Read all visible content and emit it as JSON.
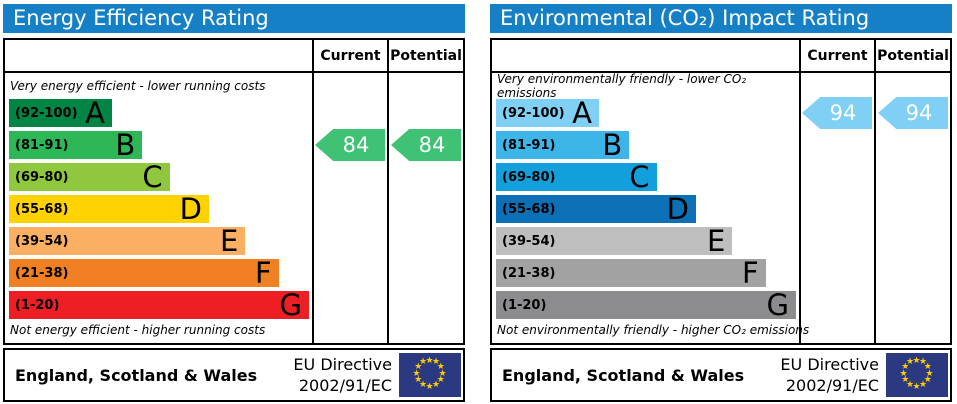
{
  "chart_data": [
    {
      "type": "bar",
      "title": "Energy Efficiency Rating",
      "categories": [
        "A (92-100)",
        "B (81-91)",
        "C (69-80)",
        "D (55-68)",
        "E (39-54)",
        "F (21-38)",
        "G (1-20)"
      ],
      "series": [
        {
          "name": "Current",
          "values": [
            84
          ],
          "band": "B"
        },
        {
          "name": "Potential",
          "values": [
            84
          ],
          "band": "B"
        }
      ],
      "ylim": [
        1,
        100
      ],
      "top_annotation": "Very energy efficient - lower running costs",
      "bottom_annotation": "Not energy efficient - higher running costs",
      "legend_position": "none",
      "footer": "England, Scotland & Wales — EU Directive 2002/91/EC"
    },
    {
      "type": "bar",
      "title": "Environmental (CO₂) Impact Rating",
      "categories": [
        "A (92-100)",
        "B (81-91)",
        "C (69-80)",
        "D (55-68)",
        "E (39-54)",
        "F (21-38)",
        "G (1-20)"
      ],
      "series": [
        {
          "name": "Current",
          "values": [
            94
          ],
          "band": "A"
        },
        {
          "name": "Potential",
          "values": [
            94
          ],
          "band": "A"
        }
      ],
      "ylim": [
        1,
        100
      ],
      "top_annotation": "Very environmentally friendly - lower CO₂ emissions",
      "bottom_annotation": "Not environmentally friendly - higher CO₂ emissions",
      "legend_position": "none",
      "footer": "England, Scotland & Wales — EU Directive 2002/91/EC"
    }
  ],
  "style": {
    "header_bg": "#1580C6",
    "flag_bg": "#2B3A80",
    "flag_star": "#FFCC00",
    "border": "#000000"
  },
  "panels": [
    {
      "title": "Energy Efficiency Rating",
      "columns": {
        "current": "Current",
        "potential": "Potential"
      },
      "top_note": "Very energy efficient - lower running costs",
      "bottom_note": "Not energy efficient - higher running costs",
      "bands": [
        {
          "range": "(92-100)",
          "letter": "A",
          "color": "#008544",
          "width_pct": 34
        },
        {
          "range": "(81-91)",
          "letter": "B",
          "color": "#2DB757",
          "width_pct": 44
        },
        {
          "range": "(69-80)",
          "letter": "C",
          "color": "#8FC73E",
          "width_pct": 53
        },
        {
          "range": "(55-68)",
          "letter": "D",
          "color": "#FFD200",
          "width_pct": 66
        },
        {
          "range": "(39-54)",
          "letter": "E",
          "color": "#FBAF63",
          "width_pct": 78
        },
        {
          "range": "(21-38)",
          "letter": "F",
          "color": "#F08023",
          "width_pct": 89
        },
        {
          "range": "(1-20)",
          "letter": "G",
          "color": "#ED1E24",
          "width_pct": 99
        }
      ],
      "current": {
        "value": "84",
        "band_index": 1,
        "color": "#3FC274"
      },
      "potential": {
        "value": "84",
        "band_index": 1,
        "color": "#3FC274"
      },
      "footer": {
        "region": "England, Scotland & Wales",
        "directive_line1": "EU Directive",
        "directive_line2": "2002/91/EC"
      }
    },
    {
      "title": "Environmental (CO₂) Impact Rating",
      "columns": {
        "current": "Current",
        "potential": "Potential"
      },
      "top_note": "Very environmentally friendly - lower CO₂ emissions",
      "bottom_note": "Not environmentally friendly - higher CO₂ emissions",
      "bands": [
        {
          "range": "(92-100)",
          "letter": "A",
          "color": "#7FD0F4",
          "width_pct": 34
        },
        {
          "range": "(81-91)",
          "letter": "B",
          "color": "#3DB5E9",
          "width_pct": 44
        },
        {
          "range": "(69-80)",
          "letter": "C",
          "color": "#129FDB",
          "width_pct": 53
        },
        {
          "range": "(55-68)",
          "letter": "D",
          "color": "#0B70B5",
          "width_pct": 66
        },
        {
          "range": "(39-54)",
          "letter": "E",
          "color": "#BEBEBE",
          "width_pct": 78
        },
        {
          "range": "(21-38)",
          "letter": "F",
          "color": "#A2A2A2",
          "width_pct": 89
        },
        {
          "range": "(1-20)",
          "letter": "G",
          "color": "#8C8C8E",
          "width_pct": 99
        }
      ],
      "current": {
        "value": "94",
        "band_index": 0,
        "color": "#7FD0F4"
      },
      "potential": {
        "value": "94",
        "band_index": 0,
        "color": "#7FD0F4"
      },
      "footer": {
        "region": "England, Scotland & Wales",
        "directive_line1": "EU Directive",
        "directive_line2": "2002/91/EC"
      }
    }
  ]
}
